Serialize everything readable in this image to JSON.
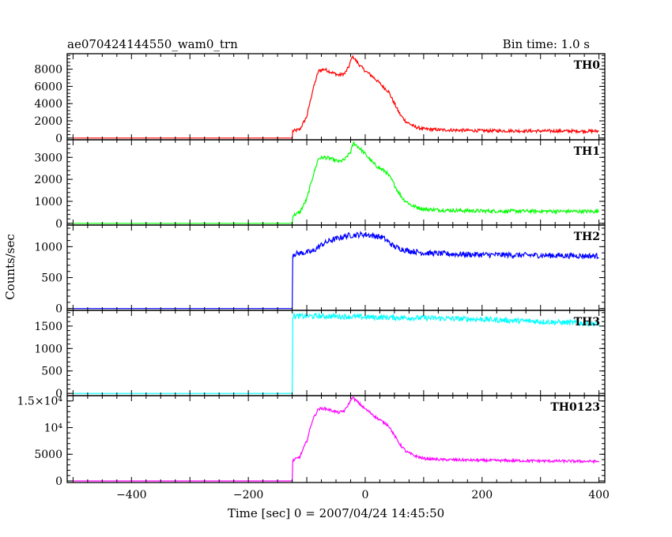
{
  "header": {
    "title": "ae070424144550_wam0_trn",
    "bin_time": "Bin time: 1.0 s"
  },
  "chart_data": {
    "type": "line",
    "xlabel": "Time [sec] 0 = 2007/04/24 14:45:50",
    "ylabel": "Counts/sec",
    "xlim": [
      -510,
      410
    ],
    "x_ticks": [
      -400,
      -200,
      0,
      200,
      400
    ],
    "x_tick_labels": [
      "−400",
      "−200",
      "0",
      "200",
      "400"
    ],
    "trigger_time": -125,
    "data_range": [
      -500,
      400
    ],
    "panels": [
      {
        "name": "TH0",
        "color": "#ff0000",
        "ylim": [
          -200,
          9800
        ],
        "y_ticks": [
          0,
          2000,
          4000,
          6000,
          8000
        ],
        "y_tick_labels": [
          "0",
          "2000",
          "4000",
          "6000",
          "8000"
        ],
        "profile": [
          [
            -500,
            0
          ],
          [
            -125,
            0
          ],
          [
            -124,
            800
          ],
          [
            -112,
            1000
          ],
          [
            -100,
            2500
          ],
          [
            -90,
            5500
          ],
          [
            -80,
            7800
          ],
          [
            -70,
            8000
          ],
          [
            -60,
            7700
          ],
          [
            -45,
            7300
          ],
          [
            -35,
            7500
          ],
          [
            -28,
            8300
          ],
          [
            -22,
            9500
          ],
          [
            -18,
            9200
          ],
          [
            -10,
            8500
          ],
          [
            0,
            7800
          ],
          [
            10,
            7300
          ],
          [
            20,
            6700
          ],
          [
            30,
            6000
          ],
          [
            40,
            5400
          ],
          [
            50,
            4000
          ],
          [
            60,
            2700
          ],
          [
            70,
            1900
          ],
          [
            85,
            1300
          ],
          [
            100,
            1050
          ],
          [
            130,
            950
          ],
          [
            200,
            850
          ],
          [
            300,
            820
          ],
          [
            400,
            800
          ]
        ],
        "noise": 180
      },
      {
        "name": "TH1",
        "color": "#00ff00",
        "ylim": [
          -80,
          3800
        ],
        "y_ticks": [
          0,
          1000,
          2000,
          3000
        ],
        "y_tick_labels": [
          "0",
          "1000",
          "2000",
          "3000"
        ],
        "profile": [
          [
            -500,
            0
          ],
          [
            -125,
            0
          ],
          [
            -124,
            350
          ],
          [
            -112,
            500
          ],
          [
            -100,
            1100
          ],
          [
            -90,
            2100
          ],
          [
            -80,
            2950
          ],
          [
            -70,
            3000
          ],
          [
            -60,
            2950
          ],
          [
            -45,
            2800
          ],
          [
            -35,
            2900
          ],
          [
            -25,
            3250
          ],
          [
            -20,
            3650
          ],
          [
            -15,
            3550
          ],
          [
            -5,
            3300
          ],
          [
            5,
            3000
          ],
          [
            15,
            2700
          ],
          [
            25,
            2500
          ],
          [
            35,
            2350
          ],
          [
            45,
            2000
          ],
          [
            55,
            1500
          ],
          [
            65,
            1100
          ],
          [
            80,
            800
          ],
          [
            100,
            650
          ],
          [
            130,
            600
          ],
          [
            200,
            560
          ],
          [
            300,
            550
          ],
          [
            400,
            540
          ]
        ],
        "noise": 80
      },
      {
        "name": "TH2",
        "color": "#0000ff",
        "ylim": [
          -30,
          1350
        ],
        "y_ticks": [
          0,
          500,
          1000
        ],
        "y_tick_labels": [
          "0",
          "500",
          "1000"
        ],
        "profile": [
          [
            -500,
            0
          ],
          [
            -125,
            0
          ],
          [
            -124,
            880
          ],
          [
            -90,
            920
          ],
          [
            -75,
            1030
          ],
          [
            -60,
            1100
          ],
          [
            -30,
            1180
          ],
          [
            0,
            1200
          ],
          [
            30,
            1150
          ],
          [
            50,
            1000
          ],
          [
            70,
            940
          ],
          [
            100,
            900
          ],
          [
            150,
            880
          ],
          [
            200,
            870
          ],
          [
            300,
            860
          ],
          [
            400,
            850
          ]
        ],
        "noise": 45
      },
      {
        "name": "TH3",
        "color": "#00ffff",
        "ylim": [
          -50,
          1850
        ],
        "y_ticks": [
          0,
          500,
          1000,
          1500
        ],
        "y_tick_labels": [
          "0",
          "500",
          "1000",
          "1500"
        ],
        "profile": [
          [
            -500,
            0
          ],
          [
            -125,
            0
          ],
          [
            -124,
            1720
          ],
          [
            -60,
            1720
          ],
          [
            0,
            1700
          ],
          [
            100,
            1680
          ],
          [
            200,
            1650
          ],
          [
            300,
            1600
          ],
          [
            400,
            1550
          ]
        ],
        "noise": 60
      },
      {
        "name": "TH0123",
        "color": "#ff00ff",
        "ylim": [
          -300,
          16000
        ],
        "y_ticks": [
          0,
          5000,
          10000,
          15000
        ],
        "y_tick_labels": [
          "0",
          "5000",
          "10⁴",
          "1.5×10⁴"
        ],
        "profile": [
          [
            -500,
            0
          ],
          [
            -125,
            0
          ],
          [
            -124,
            3800
          ],
          [
            -112,
            4500
          ],
          [
            -100,
            7500
          ],
          [
            -90,
            11500
          ],
          [
            -80,
            13500
          ],
          [
            -70,
            13600
          ],
          [
            -60,
            13300
          ],
          [
            -45,
            12800
          ],
          [
            -35,
            13200
          ],
          [
            -28,
            14500
          ],
          [
            -22,
            15700
          ],
          [
            -18,
            15300
          ],
          [
            -10,
            14500
          ],
          [
            0,
            13500
          ],
          [
            10,
            12700
          ],
          [
            20,
            11800
          ],
          [
            30,
            11100
          ],
          [
            40,
            10400
          ],
          [
            50,
            8500
          ],
          [
            60,
            6800
          ],
          [
            70,
            5500
          ],
          [
            85,
            4700
          ],
          [
            100,
            4200
          ],
          [
            130,
            4000
          ],
          [
            200,
            3850
          ],
          [
            300,
            3750
          ],
          [
            400,
            3650
          ]
        ],
        "noise": 250
      }
    ]
  }
}
